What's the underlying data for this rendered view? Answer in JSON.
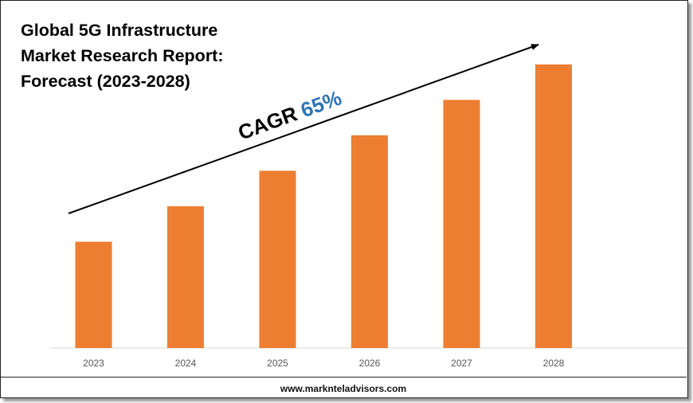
{
  "chart_data": {
    "type": "bar",
    "title_lines": [
      "Global 5G Infrastructure",
      "Market Research Report:",
      "Forecast (2023-2028)"
    ],
    "categories": [
      "2023",
      "2024",
      "2025",
      "2026",
      "2027",
      "2028"
    ],
    "values": [
      30,
      40,
      50,
      60,
      70,
      80
    ],
    "ylim": [
      0,
      82
    ],
    "annotation": {
      "label": "CAGR",
      "value": "65%"
    },
    "colors": {
      "bar": "#ED7D31",
      "cagr_value": "#2E75B6",
      "arrow": "#000000"
    },
    "xlabel": "",
    "ylabel": ""
  },
  "footer": {
    "text": "www.marknteladvisors.com"
  }
}
